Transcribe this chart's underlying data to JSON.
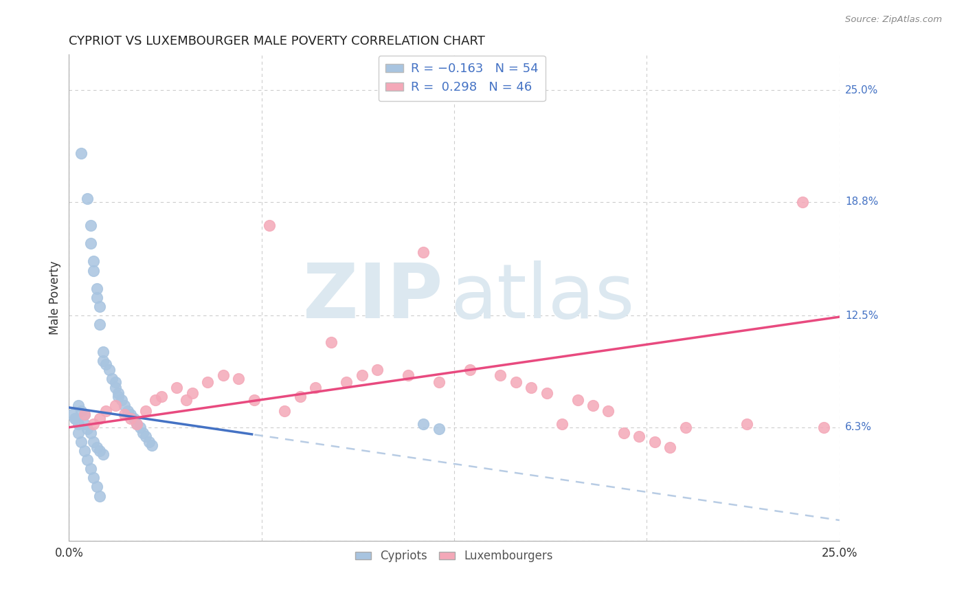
{
  "title": "CYPRIOT VS LUXEMBOURGER MALE POVERTY CORRELATION CHART",
  "source": "Source: ZipAtlas.com",
  "ylabel": "Male Poverty",
  "xlim": [
    0.0,
    0.25
  ],
  "ylim": [
    0.0,
    0.27
  ],
  "grid_color": "#cccccc",
  "background_color": "#ffffff",
  "cypriot_color": "#a8c4e0",
  "luxembourger_color": "#f4a8b8",
  "cypriot_line_color": "#4472c4",
  "luxembourger_line_color": "#e84a7f",
  "trendline_extend_color": "#b8cce4",
  "cypriot_x": [
    0.004,
    0.006,
    0.007,
    0.007,
    0.008,
    0.008,
    0.009,
    0.009,
    0.01,
    0.01,
    0.011,
    0.011,
    0.012,
    0.013,
    0.014,
    0.015,
    0.015,
    0.016,
    0.016,
    0.017,
    0.018,
    0.019,
    0.02,
    0.021,
    0.022,
    0.023,
    0.024,
    0.025,
    0.026,
    0.027,
    0.003,
    0.004,
    0.005,
    0.005,
    0.006,
    0.007,
    0.008,
    0.009,
    0.01,
    0.011,
    0.002,
    0.003,
    0.003,
    0.004,
    0.005,
    0.006,
    0.007,
    0.008,
    0.009,
    0.01,
    0.001,
    0.002,
    0.115,
    0.12
  ],
  "cypriot_y": [
    0.215,
    0.19,
    0.175,
    0.165,
    0.155,
    0.15,
    0.14,
    0.135,
    0.13,
    0.12,
    0.105,
    0.1,
    0.098,
    0.095,
    0.09,
    0.088,
    0.085,
    0.082,
    0.08,
    0.078,
    0.075,
    0.072,
    0.07,
    0.068,
    0.065,
    0.063,
    0.06,
    0.058,
    0.055,
    0.053,
    0.075,
    0.072,
    0.07,
    0.065,
    0.062,
    0.06,
    0.055,
    0.052,
    0.05,
    0.048,
    0.068,
    0.065,
    0.06,
    0.055,
    0.05,
    0.045,
    0.04,
    0.035,
    0.03,
    0.025,
    0.07,
    0.068,
    0.065,
    0.062
  ],
  "luxembourger_x": [
    0.005,
    0.008,
    0.01,
    0.012,
    0.015,
    0.018,
    0.02,
    0.022,
    0.025,
    0.028,
    0.03,
    0.035,
    0.038,
    0.04,
    0.045,
    0.05,
    0.055,
    0.06,
    0.065,
    0.07,
    0.075,
    0.08,
    0.085,
    0.09,
    0.095,
    0.1,
    0.11,
    0.115,
    0.12,
    0.13,
    0.14,
    0.145,
    0.15,
    0.155,
    0.16,
    0.165,
    0.17,
    0.175,
    0.18,
    0.185,
    0.19,
    0.195,
    0.2,
    0.22,
    0.238,
    0.245
  ],
  "luxembourger_y": [
    0.07,
    0.065,
    0.068,
    0.072,
    0.075,
    0.07,
    0.068,
    0.065,
    0.072,
    0.078,
    0.08,
    0.085,
    0.078,
    0.082,
    0.088,
    0.092,
    0.09,
    0.078,
    0.175,
    0.072,
    0.08,
    0.085,
    0.11,
    0.088,
    0.092,
    0.095,
    0.092,
    0.16,
    0.088,
    0.095,
    0.092,
    0.088,
    0.085,
    0.082,
    0.065,
    0.078,
    0.075,
    0.072,
    0.06,
    0.058,
    0.055,
    0.052,
    0.063,
    0.065,
    0.188,
    0.063
  ],
  "ytick_right": {
    "25.0%": 0.25,
    "18.8%": 0.188,
    "12.5%": 0.125,
    "6.3%": 0.063
  },
  "cypriot_trend_solid_end": 0.06,
  "cypriot_trend_start": 0.0,
  "cypriot_trend_end": 0.25,
  "lux_trend_start": 0.0,
  "lux_trend_end": 0.25
}
